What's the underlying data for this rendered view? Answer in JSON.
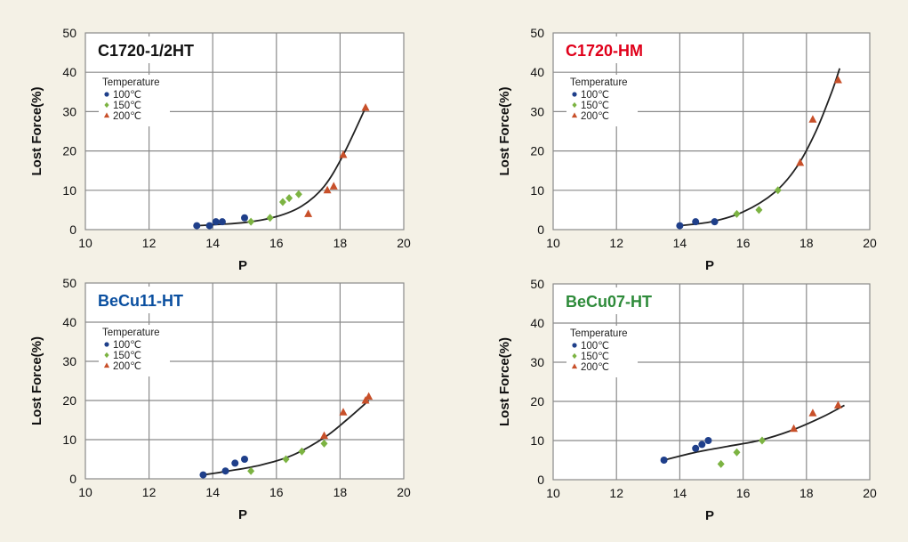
{
  "colors": {
    "background": "#f4f1e6",
    "grid": "#8a8a8a",
    "s100": "#1f3f8a",
    "s150": "#7cb342",
    "s200": "#c8502a",
    "curve": "#222222"
  },
  "chart_data": [
    {
      "type": "scatter",
      "title": "C1720-1/2HT",
      "title_color": "#111111",
      "xlabel": "P",
      "ylabel": "Lost Force(%)",
      "xlim": [
        10,
        20
      ],
      "ylim": [
        0,
        50
      ],
      "xticks": [
        "10",
        "12",
        "14",
        "16",
        "18",
        "20"
      ],
      "yticks": [
        "0",
        "10",
        "20",
        "30",
        "40",
        "50"
      ],
      "grid": true,
      "legend_title": "Temperature",
      "legend_position": "upper-left",
      "series": [
        {
          "name": "100℃",
          "marker": "circle",
          "points": [
            [
              13.5,
              1
            ],
            [
              13.9,
              1
            ],
            [
              14.1,
              2
            ],
            [
              14.3,
              2
            ],
            [
              15.0,
              3
            ]
          ]
        },
        {
          "name": "150℃",
          "marker": "diamond",
          "points": [
            [
              15.2,
              2
            ],
            [
              15.8,
              3
            ],
            [
              16.2,
              7
            ],
            [
              16.4,
              8
            ],
            [
              16.7,
              9
            ]
          ]
        },
        {
          "name": "200℃",
          "marker": "triangle",
          "points": [
            [
              17.0,
              4
            ],
            [
              17.6,
              10
            ],
            [
              17.8,
              11
            ],
            [
              18.1,
              19
            ],
            [
              18.8,
              31
            ]
          ]
        }
      ],
      "fit_curve": [
        [
          13.5,
          1
        ],
        [
          15,
          1.8
        ],
        [
          16,
          3.3
        ],
        [
          16.8,
          6
        ],
        [
          17.5,
          11
        ],
        [
          18.1,
          19
        ],
        [
          18.8,
          31
        ]
      ]
    },
    {
      "type": "scatter",
      "title": "C1720-HM",
      "title_color": "#e0001a",
      "xlabel": "P",
      "ylabel": "Lost Force(%)",
      "xlim": [
        10,
        20
      ],
      "ylim": [
        0,
        50
      ],
      "xticks": [
        "10",
        "12",
        "14",
        "16",
        "18",
        "20"
      ],
      "yticks": [
        "0",
        "10",
        "20",
        "30",
        "40",
        "50"
      ],
      "grid": true,
      "legend_title": "Temperature",
      "legend_position": "upper-left",
      "series": [
        {
          "name": "100℃",
          "marker": "circle",
          "points": [
            [
              14.0,
              1
            ],
            [
              14.5,
              2
            ],
            [
              15.1,
              2
            ]
          ]
        },
        {
          "name": "150℃",
          "marker": "diamond",
          "points": [
            [
              15.8,
              4
            ],
            [
              16.5,
              5
            ],
            [
              17.1,
              10
            ]
          ]
        },
        {
          "name": "200℃",
          "marker": "triangle",
          "points": [
            [
              17.8,
              17
            ],
            [
              18.2,
              28
            ],
            [
              19.0,
              38
            ]
          ]
        }
      ],
      "fit_curve": [
        [
          14,
          1
        ],
        [
          15,
          2
        ],
        [
          16,
          4.5
        ],
        [
          17,
          9.5
        ],
        [
          17.7,
          16
        ],
        [
          18.3,
          25
        ],
        [
          18.8,
          35
        ],
        [
          19.05,
          41
        ]
      ]
    },
    {
      "type": "scatter",
      "title": "BeCu11-HT",
      "title_color": "#0a4fa0",
      "xlabel": "P",
      "ylabel": "Lost Force(%)",
      "xlim": [
        10,
        20
      ],
      "ylim": [
        0,
        50
      ],
      "xticks": [
        "10",
        "12",
        "14",
        "16",
        "18",
        "20"
      ],
      "yticks": [
        "0",
        "10",
        "20",
        "30",
        "40",
        "50"
      ],
      "grid": true,
      "legend_title": "Temperature",
      "legend_position": "upper-left",
      "series": [
        {
          "name": "100℃",
          "marker": "circle",
          "points": [
            [
              13.7,
              1
            ],
            [
              14.4,
              2
            ],
            [
              14.7,
              4
            ],
            [
              15.0,
              5
            ]
          ]
        },
        {
          "name": "150℃",
          "marker": "diamond",
          "points": [
            [
              15.2,
              2
            ],
            [
              16.3,
              5
            ],
            [
              16.8,
              7
            ],
            [
              17.5,
              9
            ]
          ]
        },
        {
          "name": "200℃",
          "marker": "triangle",
          "points": [
            [
              17.5,
              11
            ],
            [
              18.1,
              17
            ],
            [
              18.8,
              20
            ],
            [
              18.9,
              21
            ]
          ]
        }
      ],
      "fit_curve": [
        [
          13.7,
          1
        ],
        [
          14.5,
          2
        ],
        [
          15.5,
          3.5
        ],
        [
          16.5,
          6
        ],
        [
          17.5,
          10.5
        ],
        [
          18.2,
          15
        ],
        [
          18.9,
          20
        ]
      ]
    },
    {
      "type": "scatter",
      "title": "BeCu07-HT",
      "title_color": "#2e8b3a",
      "xlabel": "P",
      "ylabel": "Lost Force(%)",
      "xlim": [
        10,
        20
      ],
      "ylim": [
        0,
        50
      ],
      "xticks": [
        "10",
        "12",
        "14",
        "16",
        "18",
        "20"
      ],
      "yticks": [
        "0",
        "10",
        "20",
        "30",
        "40",
        "50"
      ],
      "grid": true,
      "legend_title": "Temperature",
      "legend_position": "upper-left",
      "series": [
        {
          "name": "100℃",
          "marker": "circle",
          "points": [
            [
              13.5,
              5
            ],
            [
              14.5,
              8
            ],
            [
              14.7,
              9
            ],
            [
              14.9,
              10
            ]
          ]
        },
        {
          "name": "150℃",
          "marker": "diamond",
          "points": [
            [
              15.3,
              4
            ],
            [
              15.8,
              7
            ],
            [
              16.6,
              10
            ]
          ]
        },
        {
          "name": "200℃",
          "marker": "triangle",
          "points": [
            [
              17.6,
              13
            ],
            [
              18.2,
              17
            ],
            [
              19.0,
              19
            ]
          ]
        }
      ],
      "fit_curve": [
        [
          13.5,
          5
        ],
        [
          14.5,
          7
        ],
        [
          15.5,
          8.5
        ],
        [
          16.5,
          10
        ],
        [
          17.5,
          12.5
        ],
        [
          18.5,
          16
        ],
        [
          19.2,
          19
        ]
      ]
    }
  ]
}
